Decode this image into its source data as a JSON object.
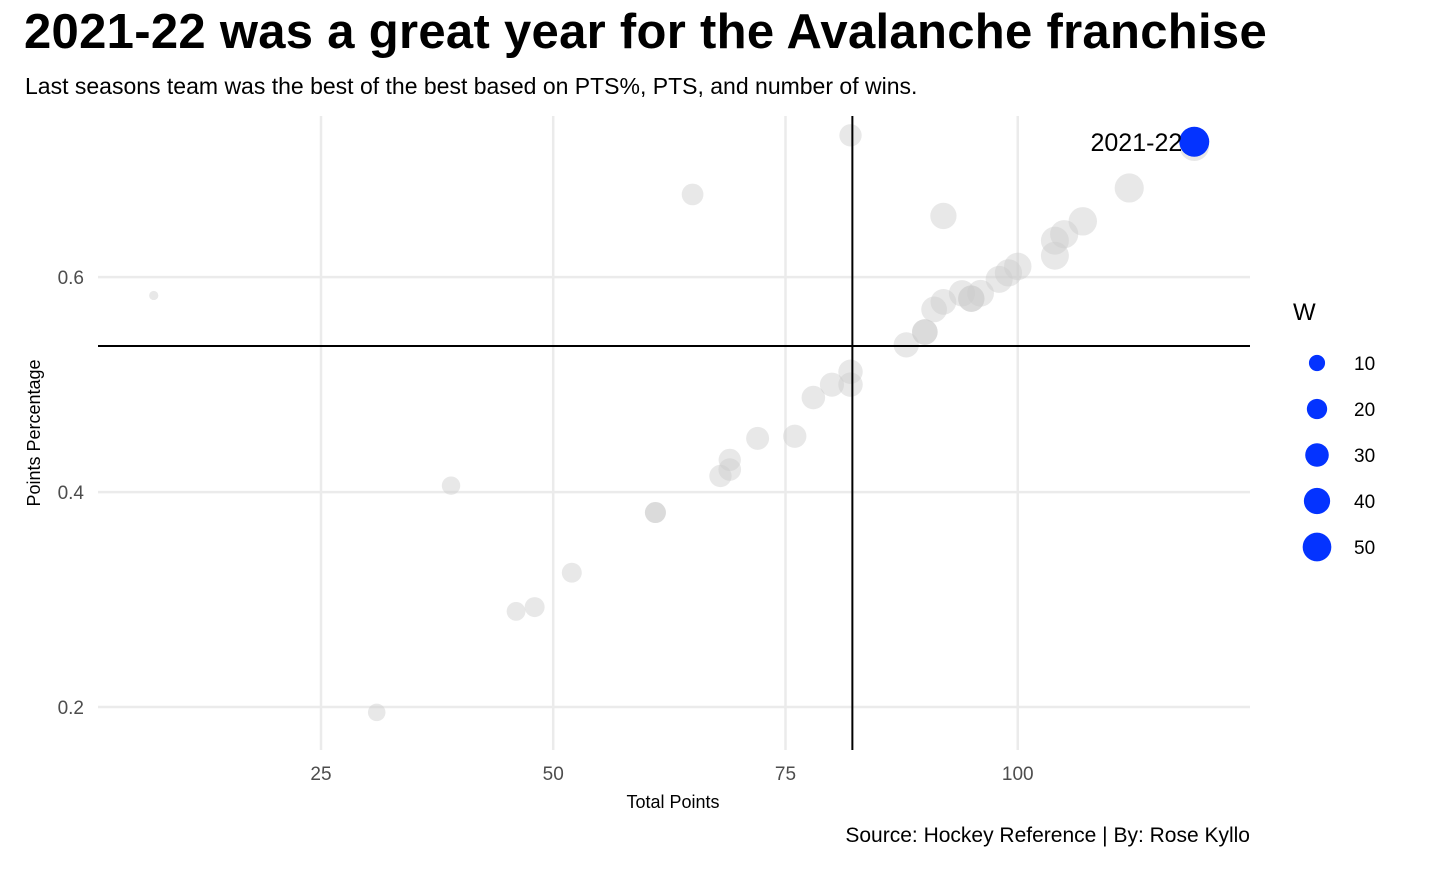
{
  "title": "2021-22 was a great year for the Avalanche franchise",
  "subtitle": "Last seasons team was the best of the best based on PTS%, PTS, and number of wins.",
  "caption": "Source: Hockey Reference | By: Rose Kyllo",
  "colors": {
    "highlight": "#0433ff",
    "other_points": "#cccccc",
    "gridline": "#ebebeb",
    "reference_line": "#000000",
    "tick_label": "#4d4d4d"
  },
  "chart_data": {
    "type": "scatter",
    "title": "2021-22 was a great year for the Avalanche franchise",
    "subtitle": "Last seasons team was the best of the best based on PTS%, PTS, and number of wins.",
    "xlabel": "Total Points",
    "ylabel": "Points Percentage",
    "xlim": [
      1,
      125
    ],
    "ylim": [
      0.16,
      0.75
    ],
    "x_ticks": [
      25,
      50,
      75,
      100
    ],
    "y_ticks": [
      0.2,
      0.4,
      0.6
    ],
    "x_tick_labels": [
      "25",
      "50",
      "75",
      "100"
    ],
    "y_tick_labels": [
      "0.2",
      "0.4",
      "0.6"
    ],
    "grid": true,
    "reference_lines": {
      "vertical_x": 82.2,
      "horizontal_y": 0.536
    },
    "legend": {
      "title": "W",
      "position": "right",
      "size_breaks": [
        10,
        20,
        30,
        40,
        50
      ],
      "labels": [
        "10",
        "20",
        "30",
        "40",
        "50"
      ]
    },
    "highlight_label": "2021-22",
    "series": [
      {
        "points": [
          {
            "x": 7,
            "y": 0.583,
            "w": 1
          },
          {
            "x": 31,
            "y": 0.195,
            "w": 13
          },
          {
            "x": 39,
            "y": 0.406,
            "w": 15
          },
          {
            "x": 46,
            "y": 0.289,
            "w": 16
          },
          {
            "x": 48,
            "y": 0.293,
            "w": 19
          },
          {
            "x": 52,
            "y": 0.325,
            "w": 19
          },
          {
            "x": 61,
            "y": 0.381,
            "w": 22
          },
          {
            "x": 61,
            "y": 0.381,
            "w": 22
          },
          {
            "x": 65,
            "y": 0.677,
            "w": 24
          },
          {
            "x": 68,
            "y": 0.415,
            "w": 26
          },
          {
            "x": 69,
            "y": 0.421,
            "w": 27
          },
          {
            "x": 69,
            "y": 0.43,
            "w": 26
          },
          {
            "x": 72,
            "y": 0.45,
            "w": 28
          },
          {
            "x": 76,
            "y": 0.452,
            "w": 29
          },
          {
            "x": 78,
            "y": 0.488,
            "w": 30
          },
          {
            "x": 80,
            "y": 0.5,
            "w": 32
          },
          {
            "x": 82,
            "y": 0.5,
            "w": 33
          },
          {
            "x": 82,
            "y": 0.512,
            "w": 33
          },
          {
            "x": 82,
            "y": 0.732,
            "w": 26
          },
          {
            "x": 88,
            "y": 0.537,
            "w": 36
          },
          {
            "x": 90,
            "y": 0.549,
            "w": 37
          },
          {
            "x": 90,
            "y": 0.549,
            "w": 38
          },
          {
            "x": 91,
            "y": 0.57,
            "w": 38
          },
          {
            "x": 92,
            "y": 0.577,
            "w": 38
          },
          {
            "x": 92,
            "y": 0.657,
            "w": 40
          },
          {
            "x": 94,
            "y": 0.585,
            "w": 40
          },
          {
            "x": 95,
            "y": 0.58,
            "w": 40
          },
          {
            "x": 95,
            "y": 0.58,
            "w": 41
          },
          {
            "x": 96,
            "y": 0.585,
            "w": 42
          },
          {
            "x": 98,
            "y": 0.598,
            "w": 43
          },
          {
            "x": 99,
            "y": 0.604,
            "w": 44
          },
          {
            "x": 100,
            "y": 0.61,
            "w": 45
          },
          {
            "x": 104,
            "y": 0.62,
            "w": 47
          },
          {
            "x": 104,
            "y": 0.634,
            "w": 47
          },
          {
            "x": 105,
            "y": 0.64,
            "w": 48
          },
          {
            "x": 107,
            "y": 0.652,
            "w": 49
          },
          {
            "x": 112,
            "y": 0.683,
            "w": 52
          },
          {
            "x": 119,
            "y": 0.722,
            "w": 55
          }
        ]
      },
      {
        "name": "2021-22",
        "points": [
          {
            "x": 119,
            "y": 0.726,
            "w": 56
          }
        ]
      }
    ]
  }
}
